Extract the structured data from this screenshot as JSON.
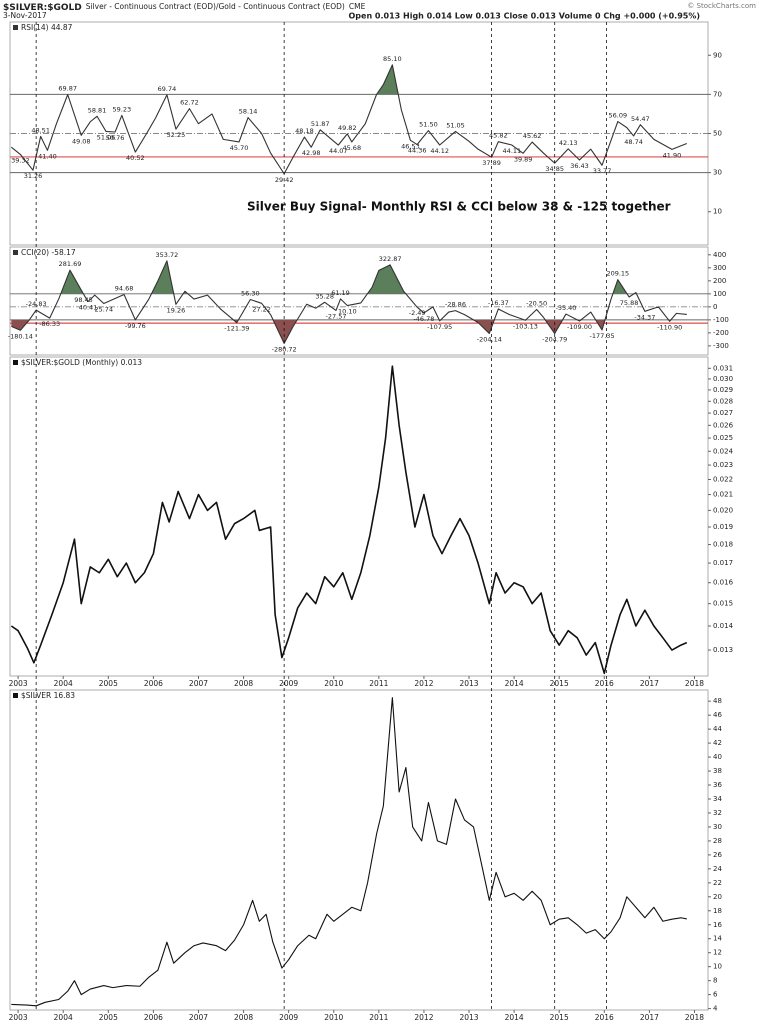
{
  "header": {
    "symbol": "$SILVER:$GOLD",
    "description": "Silver - Continuous Contract (EOD)/Gold - Continuous Contract (EOD)",
    "exchange": "CME",
    "date": "3-Nov-2017",
    "quote": "Open 0.013 High 0.014 Low 0.013 Close 0.013 Volume 0 Chg +0.000 (+0.95%)",
    "credit": "© StockCharts.com"
  },
  "signal_lines": [
    2003.4,
    2008.9,
    2013.5,
    2014.9,
    2016.05
  ],
  "chart_data": [
    {
      "type": "line",
      "annotation": "Silver Buy Signal- Monthly RSI & CCI below 38 & -125 together",
      "xlim": [
        2002.82,
        2018.3
      ],
      "ylim": [
        -7,
        107
      ],
      "yticks": [
        10,
        30,
        50,
        70,
        90
      ],
      "hlines": [
        {
          "value": 70,
          "style": "solid",
          "color": "#666666"
        },
        {
          "value": 50,
          "style": "dashdot",
          "color": "#888888"
        },
        {
          "value": 38,
          "style": "solid",
          "color": "#d42020"
        },
        {
          "value": 30,
          "style": "solid",
          "color": "#666666"
        }
      ],
      "fills": [
        {
          "value": 70,
          "side": "above",
          "color": "#5b7f5b"
        },
        {
          "value": 30,
          "side": "below",
          "color": "#8b4f4f"
        }
      ],
      "x": [
        2002.85,
        2003.05,
        2003.33,
        2003.5,
        2003.65,
        2003.85,
        2004.1,
        2004.4,
        2004.6,
        2004.75,
        2004.95,
        2005.15,
        2005.3,
        2005.6,
        2005.85,
        2006.05,
        2006.3,
        2006.5,
        2006.8,
        2007.0,
        2007.3,
        2007.55,
        2007.9,
        2008.1,
        2008.4,
        2008.6,
        2008.9,
        2009.1,
        2009.35,
        2009.5,
        2009.7,
        2010.1,
        2010.3,
        2010.4,
        2010.7,
        2010.95,
        2011.1,
        2011.3,
        2011.5,
        2011.7,
        2011.85,
        2012.1,
        2012.35,
        2012.7,
        2013.0,
        2013.2,
        2013.5,
        2013.65,
        2013.95,
        2014.2,
        2014.4,
        2014.65,
        2014.9,
        2015.2,
        2015.45,
        2015.7,
        2015.95,
        2016.3,
        2016.5,
        2016.65,
        2016.8,
        2017.1,
        2017.5,
        2017.83
      ],
      "series": [
        {
          "name": "RSI(14) 44.87",
          "color": "#333333",
          "values": [
            43,
            39.32,
            31.26,
            48.51,
            41.4,
            55,
            69.87,
            49.08,
            56,
            58.81,
            51.06,
            50.76,
            59.23,
            40.52,
            50,
            58,
            69.74,
            52.25,
            62.72,
            55,
            60,
            47,
            45.7,
            58.14,
            50,
            40,
            29.42,
            38,
            48.18,
            42.98,
            51.87,
            44.07,
            49.82,
            45.68,
            55,
            70,
            75,
            85.1,
            62,
            46.53,
            44.36,
            51.5,
            44.12,
            51.05,
            46,
            42,
            37.89,
            45.82,
            44.11,
            39.89,
            45.62,
            40,
            34.85,
            42.13,
            36.43,
            42,
            33.77,
            56.09,
            53,
            48.74,
            54.47,
            47,
            41.9,
            44.87
          ],
          "value_labels": [
            null,
            "39.32",
            "31.26",
            "48.51",
            "41.40",
            null,
            "69.87",
            "49.08",
            null,
            "58.81",
            "51.06",
            "50.76",
            "59.23",
            "40.52",
            null,
            null,
            "69.74",
            "52.25",
            "62.72",
            null,
            null,
            null,
            "45.70",
            "58.14",
            null,
            null,
            "29.42",
            null,
            "48.18",
            "42.98",
            "51.87",
            "44.07",
            "49.82",
            "45.68",
            null,
            null,
            null,
            "85.10",
            null,
            "46.53",
            "44.36",
            "51.50",
            "44.12",
            "51.05",
            null,
            null,
            "37.89",
            "45.82",
            "44.11",
            "39.89",
            "45.62",
            null,
            "34.85",
            "42.13",
            "36.43",
            null,
            "33.77",
            "56.09",
            null,
            "48.74",
            "54.47",
            null,
            "41.90",
            null
          ]
        }
      ]
    },
    {
      "type": "line",
      "xlim": [
        2002.82,
        2018.3
      ],
      "ylim": [
        -370,
        460
      ],
      "yticks": [
        -300,
        -200,
        -100,
        0,
        100,
        200,
        300,
        400
      ],
      "hlines": [
        {
          "value": 100,
          "style": "solid",
          "color": "#666666"
        },
        {
          "value": 0,
          "style": "dashdot",
          "color": "#888888"
        },
        {
          "value": -100,
          "style": "solid",
          "color": "#666666"
        },
        {
          "value": -125,
          "style": "solid",
          "color": "#d42020"
        }
      ],
      "fills": [
        {
          "value": 100,
          "side": "above",
          "color": "#5b7f5b"
        },
        {
          "value": -100,
          "side": "below",
          "color": "#8b4f4f"
        }
      ],
      "x": [
        2002.85,
        2003.05,
        2003.25,
        2003.4,
        2003.7,
        2003.9,
        2004.15,
        2004.45,
        2004.55,
        2004.7,
        2004.9,
        2005.35,
        2005.6,
        2005.9,
        2006.1,
        2006.3,
        2006.5,
        2006.7,
        2006.9,
        2007.2,
        2007.5,
        2007.85,
        2008.15,
        2008.4,
        2008.6,
        2008.9,
        2009.1,
        2009.4,
        2009.6,
        2009.8,
        2010.05,
        2010.15,
        2010.3,
        2010.6,
        2010.85,
        2011.0,
        2011.25,
        2011.55,
        2011.85,
        2012.0,
        2012.2,
        2012.35,
        2012.55,
        2012.7,
        2012.9,
        2013.2,
        2013.45,
        2013.65,
        2013.9,
        2014.25,
        2014.5,
        2014.65,
        2014.9,
        2015.15,
        2015.45,
        2015.7,
        2015.95,
        2016.15,
        2016.3,
        2016.55,
        2016.7,
        2016.9,
        2017.2,
        2017.45,
        2017.6,
        2017.83
      ],
      "series": [
        {
          "name": "CCI(20) -58.17",
          "color": "#333333",
          "values": [
            -150,
            -180.14,
            -100,
            -24.83,
            -86.33,
            60,
            281.69,
            98.45,
            40.41,
            90,
            25.74,
            94.68,
            -99.76,
            60,
            200,
            353.72,
            19.26,
            120,
            60,
            90,
            -20,
            -121.39,
            56.3,
            27.22,
            -60,
            -280.72,
            -150,
            20,
            -10,
            35.28,
            -27.57,
            61.19,
            10.1,
            30,
            150,
            280,
            322.87,
            120,
            -2.49,
            -46.78,
            0,
            -107.95,
            -40,
            -28.86,
            -60,
            -120,
            -204.14,
            -16.37,
            -60,
            -103.13,
            -20.5,
            -80,
            -204.79,
            -55.4,
            -109,
            -40,
            -177.35,
            60,
            209.15,
            75.88,
            110,
            -34.37,
            0,
            -110.9,
            -50,
            -58.17
          ],
          "value_labels": [
            null,
            "-180.14",
            null,
            "-24.83",
            "-86.33",
            null,
            "281.69",
            "98.45",
            "40.41",
            null,
            "25.74",
            "94.68",
            "-99.76",
            null,
            null,
            "353.72",
            "19.26",
            null,
            null,
            null,
            null,
            "-121.39",
            "56.30",
            "27.22",
            null,
            "-280.72",
            null,
            null,
            null,
            "35.28",
            "-27.57",
            "61.19",
            "10.10",
            null,
            null,
            null,
            "322.87",
            null,
            "-2.49",
            "-46.78",
            null,
            "-107.95",
            null,
            "-28.86",
            null,
            null,
            "-204.14",
            "-16.37",
            null,
            "-103.13",
            "-20.50",
            null,
            "-204.79",
            "-55.40",
            "-109.00",
            null,
            "-177.35",
            null,
            "209.15",
            "75.88",
            null,
            "-34.37",
            null,
            "-110.90",
            null,
            null
          ]
        }
      ]
    },
    {
      "type": "line",
      "log_scale": true,
      "xlim": [
        2002.82,
        2018.3
      ],
      "xticks": [
        2003,
        2004,
        2005,
        2006,
        2007,
        2008,
        2009,
        2010,
        2011,
        2012,
        2013,
        2014,
        2015,
        2016,
        2017,
        2018
      ],
      "ylim": [
        0.012,
        0.0321
      ],
      "yticks": [
        0.013,
        0.014,
        0.015,
        0.016,
        0.017,
        0.018,
        0.019,
        {
          "value": 0.02,
          "label": "0.020"
        },
        0.021,
        0.022,
        0.023,
        0.024,
        0.025,
        0.026,
        0.027,
        0.028,
        0.029,
        {
          "value": 0.03,
          "label": "0.030"
        },
        0.031
      ],
      "x": [
        2002.85,
        2003.0,
        2003.2,
        2003.35,
        2003.5,
        2003.75,
        2004.0,
        2004.25,
        2004.4,
        2004.6,
        2004.8,
        2005.0,
        2005.2,
        2005.4,
        2005.6,
        2005.8,
        2006.0,
        2006.2,
        2006.35,
        2006.55,
        2006.8,
        2007.0,
        2007.2,
        2007.4,
        2007.6,
        2007.8,
        2008.0,
        2008.25,
        2008.35,
        2008.6,
        2008.7,
        2008.85,
        2009.0,
        2009.2,
        2009.4,
        2009.6,
        2009.8,
        2010.0,
        2010.2,
        2010.4,
        2010.6,
        2010.8,
        2011.0,
        2011.15,
        2011.3,
        2011.45,
        2011.6,
        2011.8,
        2012.0,
        2012.2,
        2012.4,
        2012.6,
        2012.8,
        2013.0,
        2013.2,
        2013.45,
        2013.6,
        2013.8,
        2014.0,
        2014.2,
        2014.4,
        2014.6,
        2014.8,
        2015.0,
        2015.2,
        2015.4,
        2015.6,
        2015.8,
        2016.0,
        2016.15,
        2016.35,
        2016.5,
        2016.7,
        2016.9,
        2017.1,
        2017.3,
        2017.5,
        2017.7,
        2017.83
      ],
      "series": [
        {
          "name": "$SILVER:$GOLD (Monthly) 0.013",
          "color": "#111111",
          "values": [
            0.014,
            0.0138,
            0.0131,
            0.0125,
            0.0132,
            0.0145,
            0.016,
            0.0183,
            0.015,
            0.0168,
            0.0165,
            0.0172,
            0.0163,
            0.017,
            0.016,
            0.0165,
            0.0175,
            0.0205,
            0.0193,
            0.0212,
            0.0195,
            0.021,
            0.02,
            0.0205,
            0.0183,
            0.0192,
            0.0195,
            0.02,
            0.0188,
            0.019,
            0.0145,
            0.0127,
            0.0135,
            0.0148,
            0.0155,
            0.015,
            0.0163,
            0.0158,
            0.0165,
            0.0152,
            0.0165,
            0.0185,
            0.0215,
            0.025,
            0.0312,
            0.026,
            0.0225,
            0.019,
            0.021,
            0.0185,
            0.0175,
            0.0185,
            0.0195,
            0.0185,
            0.017,
            0.015,
            0.0165,
            0.0155,
            0.016,
            0.0158,
            0.015,
            0.0155,
            0.0138,
            0.0132,
            0.0138,
            0.0135,
            0.0128,
            0.0133,
            0.0121,
            0.0132,
            0.0145,
            0.0152,
            0.014,
            0.0147,
            0.014,
            0.0135,
            0.013,
            0.0132,
            0.0133
          ]
        }
      ]
    },
    {
      "type": "line",
      "xlim": [
        2002.82,
        2018.3
      ],
      "xticks": [
        2003,
        2004,
        2005,
        2006,
        2007,
        2008,
        2009,
        2010,
        2011,
        2012,
        2013,
        2014,
        2015,
        2016,
        2017,
        2018
      ],
      "ylim": [
        3.8,
        49.6
      ],
      "yticks": [
        4,
        6,
        8,
        10,
        12,
        14,
        16,
        18,
        20,
        22,
        24,
        26,
        28,
        30,
        32,
        34,
        36,
        38,
        40,
        42,
        44,
        46,
        48
      ],
      "x": [
        2002.85,
        2003.2,
        2003.4,
        2003.6,
        2003.9,
        2004.1,
        2004.25,
        2004.4,
        2004.6,
        2004.9,
        2005.1,
        2005.4,
        2005.7,
        2005.9,
        2006.1,
        2006.3,
        2006.45,
        2006.7,
        2006.9,
        2007.1,
        2007.4,
        2007.6,
        2007.8,
        2008.0,
        2008.2,
        2008.35,
        2008.5,
        2008.65,
        2008.85,
        2009.0,
        2009.2,
        2009.45,
        2009.6,
        2009.85,
        2010.0,
        2010.2,
        2010.4,
        2010.6,
        2010.75,
        2010.95,
        2011.1,
        2011.3,
        2011.45,
        2011.6,
        2011.75,
        2011.95,
        2012.1,
        2012.3,
        2012.5,
        2012.7,
        2012.9,
        2013.1,
        2013.3,
        2013.45,
        2013.6,
        2013.8,
        2014.0,
        2014.2,
        2014.4,
        2014.6,
        2014.8,
        2015.0,
        2015.2,
        2015.4,
        2015.6,
        2015.8,
        2016.0,
        2016.15,
        2016.35,
        2016.5,
        2016.7,
        2016.9,
        2017.1,
        2017.3,
        2017.5,
        2017.7,
        2017.83
      ],
      "series": [
        {
          "name": "$SILVER 16.83",
          "color": "#111111",
          "values": [
            4.6,
            4.5,
            4.4,
            4.9,
            5.3,
            6.5,
            8.0,
            6.0,
            6.8,
            7.3,
            7.0,
            7.3,
            7.2,
            8.5,
            9.5,
            13.5,
            10.5,
            12.0,
            13.0,
            13.4,
            13.0,
            12.3,
            13.8,
            16.0,
            19.5,
            16.5,
            17.5,
            13.5,
            9.8,
            11.0,
            13.0,
            14.5,
            14.0,
            17.5,
            16.5,
            17.5,
            18.5,
            18.0,
            22,
            29,
            33,
            48.5,
            35,
            38.5,
            30,
            28,
            33.5,
            28,
            27.5,
            34,
            31,
            30,
            24,
            19.5,
            23.5,
            20,
            20.5,
            19.5,
            20.8,
            19.5,
            16,
            16.8,
            17,
            16,
            14.8,
            15.3,
            14,
            15,
            17,
            20,
            18.5,
            17,
            18.5,
            16.5,
            16.8,
            17,
            16.83
          ]
        }
      ]
    }
  ]
}
